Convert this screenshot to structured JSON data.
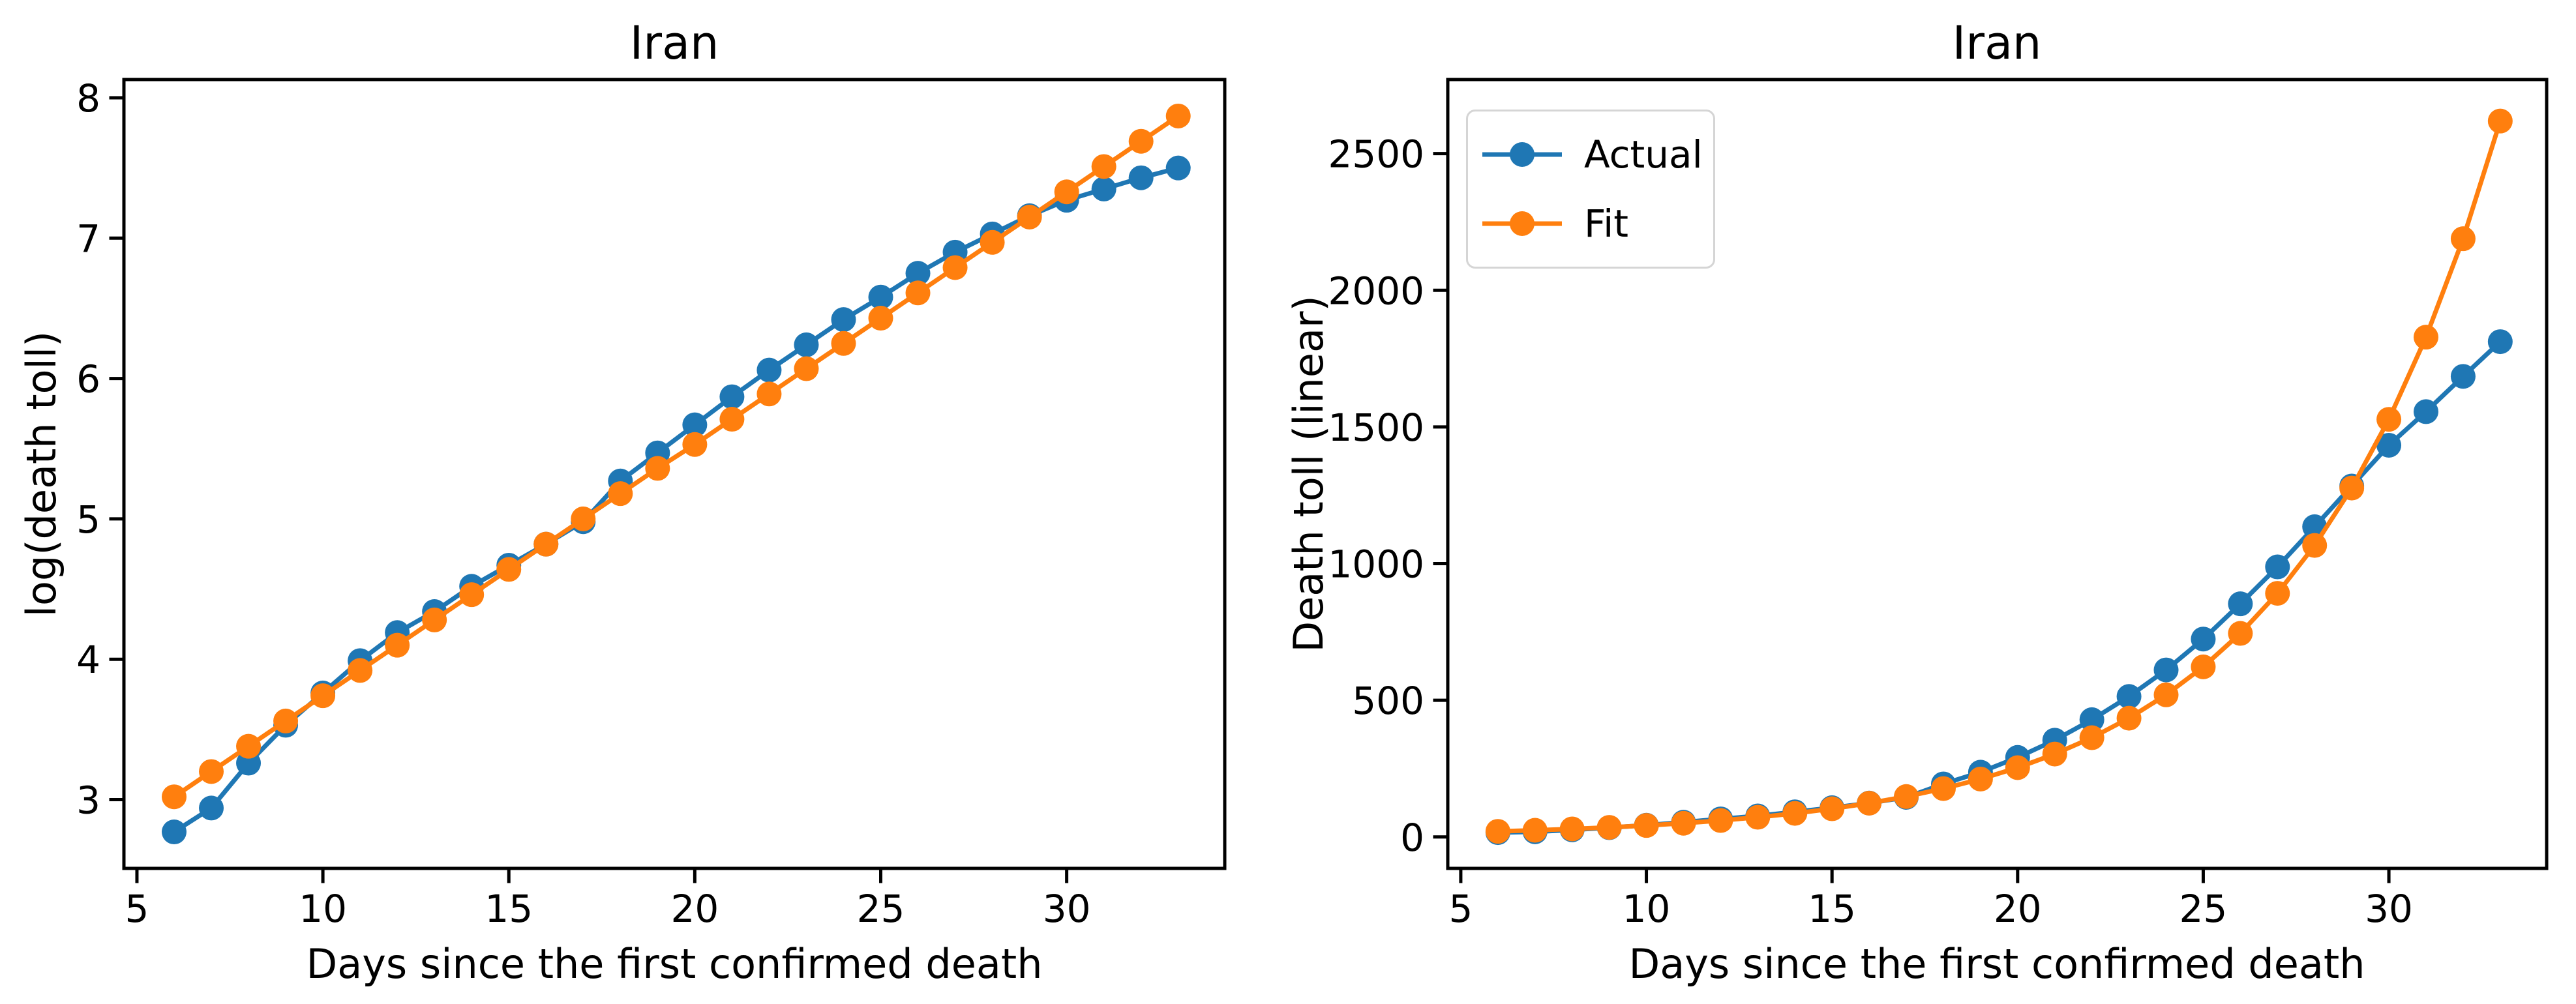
{
  "figure": {
    "background": "#ffffff",
    "axis_color": "#000000",
    "legend_border_color": "#d5d5d5"
  },
  "legend": {
    "actual_label": "Actual",
    "fit_label": "Fit"
  },
  "chart_data": [
    {
      "type": "line",
      "title": "Iran",
      "xlabel": "Days since the first confirmed death",
      "ylabel": "log(death toll)",
      "xlim": [
        4.65,
        34.25
      ],
      "ylim": [
        2.51,
        8.13
      ],
      "xticks": [
        5,
        10,
        15,
        20,
        25,
        30
      ],
      "yticks": [
        3,
        4,
        5,
        6,
        7,
        8
      ],
      "grid": false,
      "legend_position": "none",
      "x": [
        6,
        7,
        8,
        9,
        10,
        11,
        12,
        13,
        14,
        15,
        16,
        17,
        18,
        19,
        20,
        21,
        22,
        23,
        24,
        25,
        26,
        27,
        28,
        29,
        30,
        31,
        32,
        33
      ],
      "series": [
        {
          "name": "Actual",
          "color": "#1f77b4",
          "values": [
            2.77,
            2.94,
            3.26,
            3.53,
            3.76,
            3.99,
            4.19,
            4.34,
            4.52,
            4.67,
            4.82,
            4.98,
            5.27,
            5.47,
            5.67,
            5.87,
            6.06,
            6.24,
            6.42,
            6.58,
            6.75,
            6.9,
            7.03,
            7.16,
            7.27,
            7.35,
            7.43,
            7.5
          ]
        },
        {
          "name": "Fit",
          "color": "#ff7f0e",
          "values": [
            3.02,
            3.2,
            3.38,
            3.56,
            3.74,
            3.92,
            4.1,
            4.28,
            4.46,
            4.64,
            4.82,
            5.0,
            5.18,
            5.36,
            5.53,
            5.71,
            5.89,
            6.07,
            6.25,
            6.43,
            6.61,
            6.79,
            6.97,
            7.15,
            7.33,
            7.51,
            7.69,
            7.87
          ]
        }
      ]
    },
    {
      "type": "line",
      "title": "Iran",
      "xlabel": "Days since the first confirmed death",
      "ylabel": "Death toll (linear)",
      "xlim": [
        4.65,
        34.25
      ],
      "ylim": [
        -115,
        2771
      ],
      "xticks": [
        5,
        10,
        15,
        20,
        25,
        30
      ],
      "yticks": [
        0,
        500,
        1000,
        1500,
        2000,
        2500
      ],
      "grid": false,
      "legend_position": "upper left",
      "x": [
        6,
        7,
        8,
        9,
        10,
        11,
        12,
        13,
        14,
        15,
        16,
        17,
        18,
        19,
        20,
        21,
        22,
        23,
        24,
        25,
        26,
        27,
        28,
        29,
        30,
        31,
        32,
        33
      ],
      "series": [
        {
          "name": "Actual",
          "color": "#1f77b4",
          "values": [
            16,
            19,
            26,
            34,
            43,
            54,
            66,
            77,
            92,
            107,
            124,
            145,
            194,
            237,
            291,
            354,
            429,
            514,
            611,
            724,
            853,
            988,
            1135,
            1284,
            1433,
            1556,
            1685,
            1812
          ]
        },
        {
          "name": "Fit",
          "color": "#ff7f0e",
          "values": [
            20.5,
            24.5,
            29.4,
            35.1,
            42.0,
            50.3,
            60.2,
            72.1,
            86.3,
            103.2,
            123.5,
            147.9,
            177.0,
            211.8,
            253.5,
            303.4,
            363.1,
            434.5,
            520.0,
            622.3,
            744.8,
            891.3,
            1066.6,
            1276.5,
            1527.8,
            1828.5,
            2188.6,
            2619.2
          ]
        }
      ]
    }
  ]
}
